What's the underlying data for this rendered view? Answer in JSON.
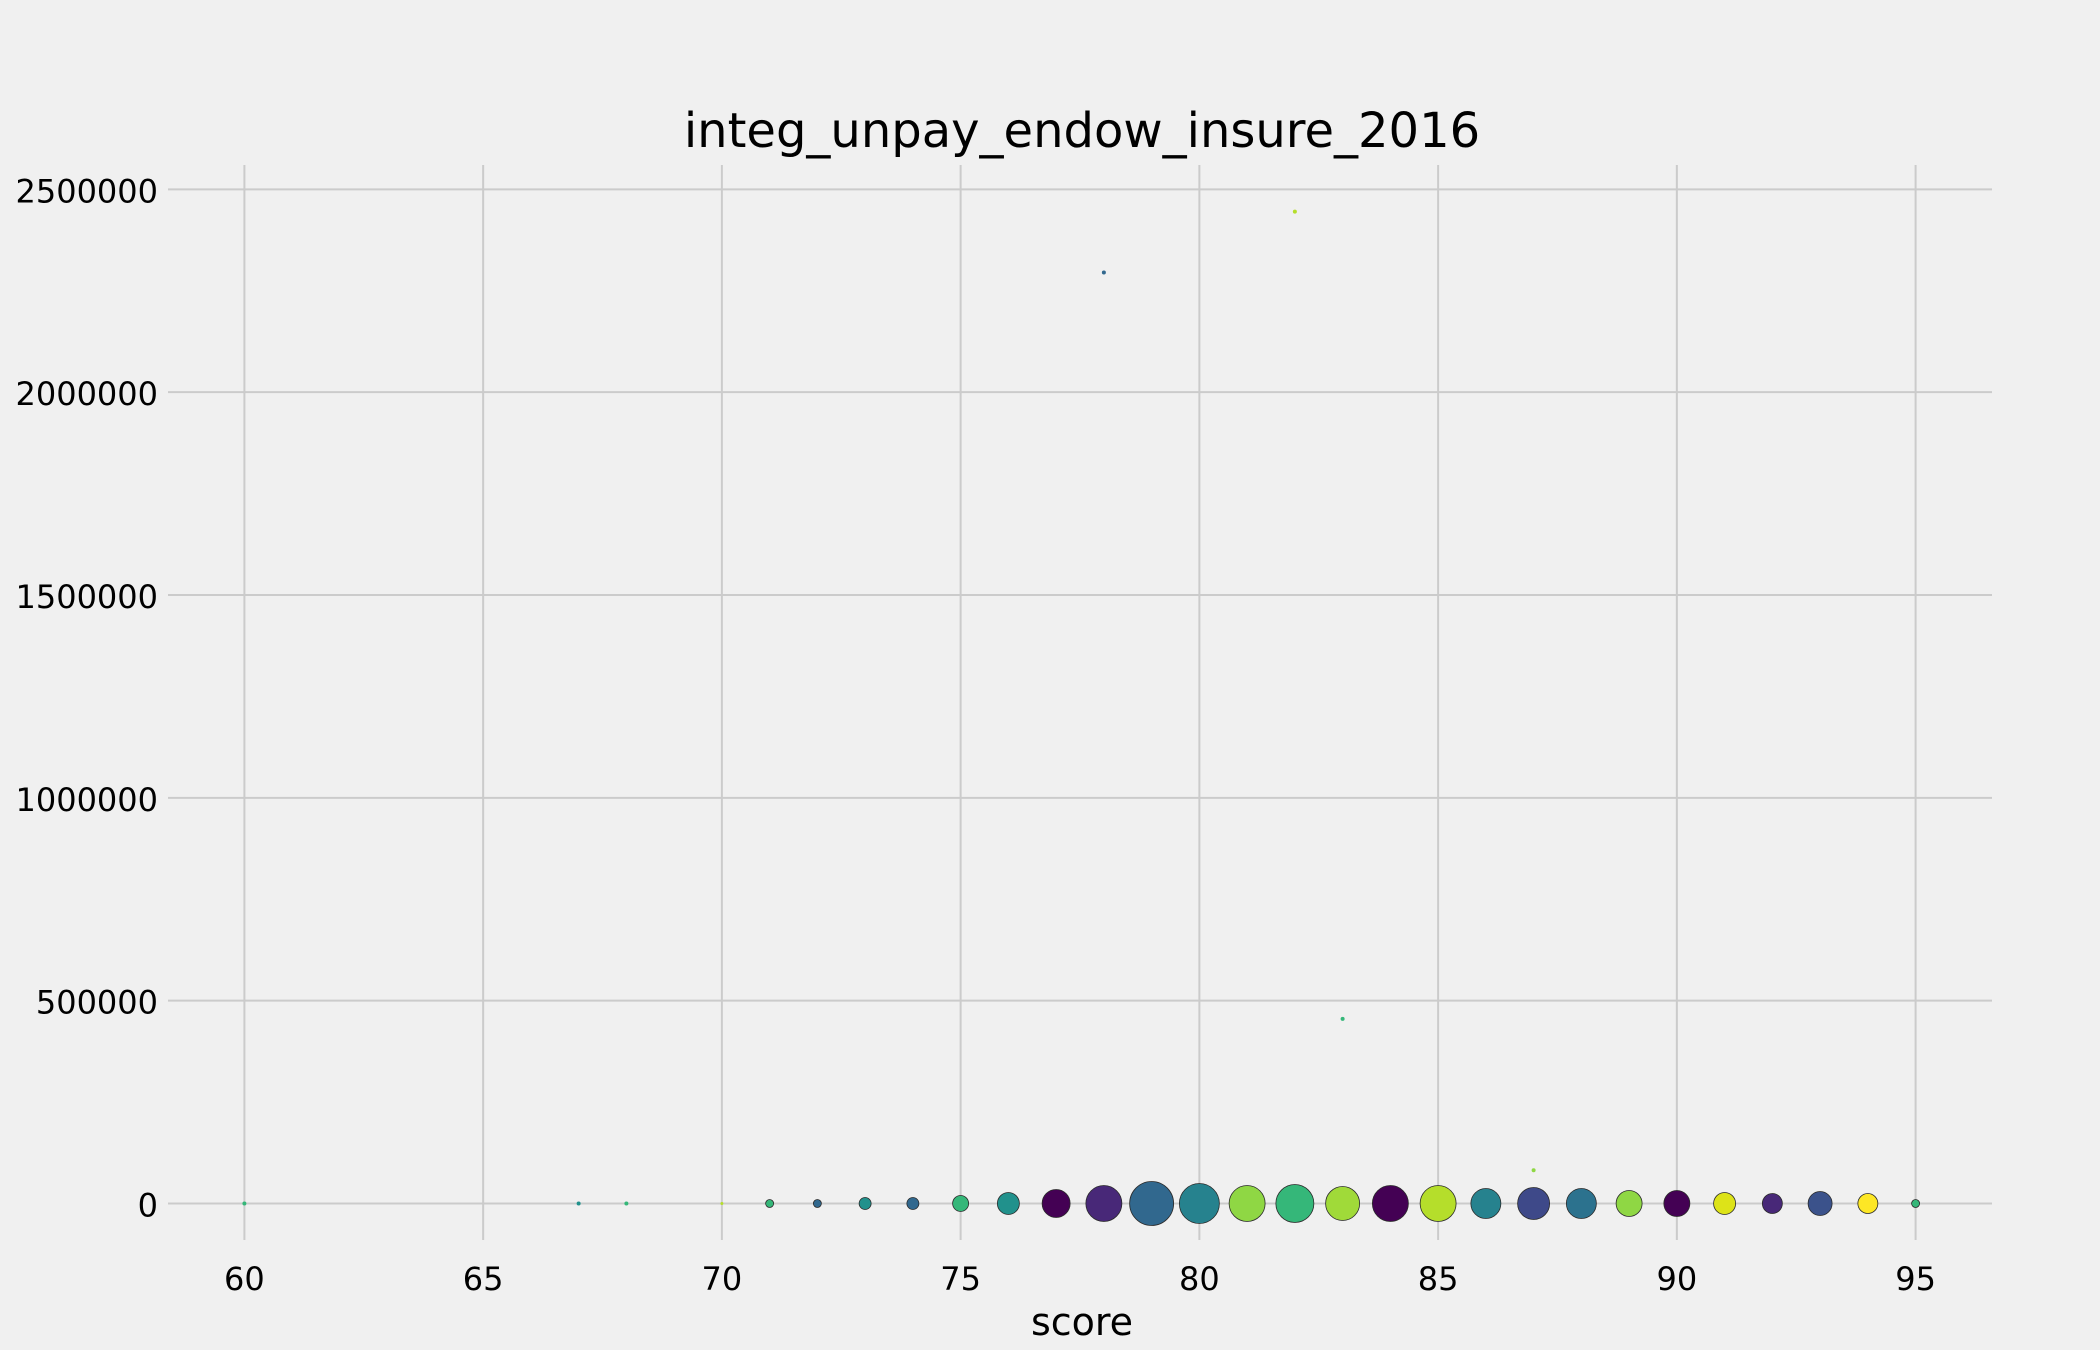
{
  "chart_data": {
    "type": "scatter",
    "title": "integ_unpay_endow_insure_2016",
    "xlabel": "score",
    "ylabel": "",
    "xlim": [
      58.4,
      96.6
    ],
    "ylim": [
      -90000,
      2560000
    ],
    "xticks": [
      60,
      65,
      70,
      75,
      80,
      85,
      90,
      95
    ],
    "yticks": [
      0,
      500000,
      1000000,
      1500000,
      2000000,
      2500000
    ],
    "grid": true,
    "points": [
      {
        "x": 60,
        "y": 0,
        "size": 2,
        "color": "#35b779"
      },
      {
        "x": 67,
        "y": 0,
        "size": 2,
        "color": "#21918c"
      },
      {
        "x": 68,
        "y": 0,
        "size": 2,
        "color": "#35b779"
      },
      {
        "x": 70,
        "y": 0,
        "size": 1.5,
        "color": "#b5de2b"
      },
      {
        "x": 71,
        "y": 0,
        "size": 4,
        "color": "#35b779"
      },
      {
        "x": 72,
        "y": 0,
        "size": 4,
        "color": "#31688e"
      },
      {
        "x": 73,
        "y": 0,
        "size": 6,
        "color": "#21918c"
      },
      {
        "x": 74,
        "y": 0,
        "size": 6,
        "color": "#31688e"
      },
      {
        "x": 75,
        "y": 0,
        "size": 8,
        "color": "#35b779"
      },
      {
        "x": 76,
        "y": 0,
        "size": 11,
        "color": "#21918c"
      },
      {
        "x": 77,
        "y": 0,
        "size": 14,
        "color": "#440154"
      },
      {
        "x": 78,
        "y": 0,
        "size": 18,
        "color": "#482878"
      },
      {
        "x": 79,
        "y": 0,
        "size": 22,
        "color": "#31688e"
      },
      {
        "x": 80,
        "y": 0,
        "size": 20,
        "color": "#26828e"
      },
      {
        "x": 81,
        "y": 0,
        "size": 18,
        "color": "#8fd744"
      },
      {
        "x": 82,
        "y": 0,
        "size": 19,
        "color": "#35b779"
      },
      {
        "x": 83,
        "y": 0,
        "size": 17,
        "color": "#a0da39"
      },
      {
        "x": 84,
        "y": 0,
        "size": 18,
        "color": "#440154"
      },
      {
        "x": 85,
        "y": 0,
        "size": 18,
        "color": "#b5de2b"
      },
      {
        "x": 86,
        "y": 0,
        "size": 15,
        "color": "#26828e"
      },
      {
        "x": 87,
        "y": 0,
        "size": 16,
        "color": "#3e4989"
      },
      {
        "x": 88,
        "y": 0,
        "size": 15,
        "color": "#2c728e"
      },
      {
        "x": 89,
        "y": 0,
        "size": 13,
        "color": "#8fd744"
      },
      {
        "x": 90,
        "y": 0,
        "size": 13,
        "color": "#440154"
      },
      {
        "x": 91,
        "y": 0,
        "size": 11,
        "color": "#dde318"
      },
      {
        "x": 92,
        "y": 0,
        "size": 10,
        "color": "#482878"
      },
      {
        "x": 93,
        "y": 0,
        "size": 12,
        "color": "#3b528b"
      },
      {
        "x": 94,
        "y": 0,
        "size": 10,
        "color": "#fde725"
      },
      {
        "x": 95,
        "y": 0,
        "size": 4,
        "color": "#35b779"
      },
      {
        "x": 78,
        "y": 2295000,
        "size": 2,
        "color": "#31688e"
      },
      {
        "x": 82,
        "y": 2445000,
        "size": 2,
        "color": "#b5de2b"
      },
      {
        "x": 83,
        "y": 455000,
        "size": 2,
        "color": "#35b779"
      },
      {
        "x": 87,
        "y": 82000,
        "size": 2,
        "color": "#8fd744"
      }
    ]
  }
}
